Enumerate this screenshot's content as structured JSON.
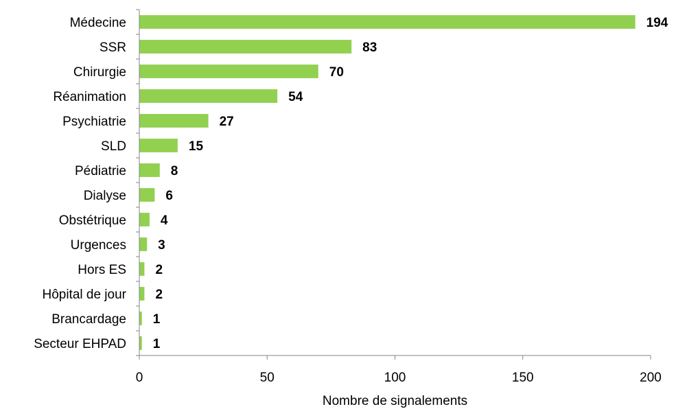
{
  "chart_data": {
    "type": "bar",
    "orientation": "horizontal",
    "title": "",
    "xlabel": "Nombre de signalements",
    "ylabel": "",
    "xlim": [
      0,
      200
    ],
    "xticks": [
      0,
      50,
      100,
      150,
      200
    ],
    "grid": false,
    "legend": "none",
    "bar_color": "#92d050",
    "categories": [
      "Médecine",
      "SSR",
      "Chirurgie",
      "Réanimation",
      "Psychiatrie",
      "SLD",
      "Pédiatrie",
      "Dialyse",
      "Obstétrique",
      "Urgences",
      "Hors ES",
      "Hôpital de jour",
      "Brancardage",
      "Secteur EHPAD"
    ],
    "values": [
      194,
      83,
      70,
      54,
      27,
      15,
      8,
      6,
      4,
      3,
      2,
      2,
      1,
      1
    ]
  }
}
